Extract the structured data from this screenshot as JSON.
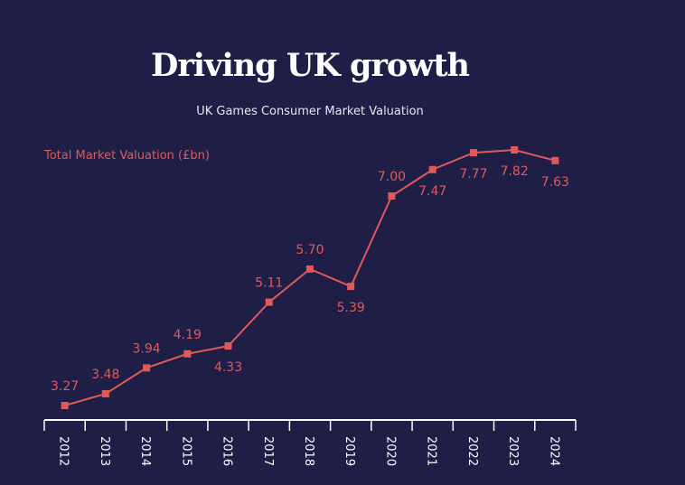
{
  "chart_data": {
    "type": "line",
    "title": "Driving UK growth",
    "subtitle": "UK Games Consumer Market Valuation",
    "ylabel": "Total Market Valuation (£bn)",
    "xlabel": "",
    "categories": [
      "2012",
      "2013",
      "2014",
      "2015",
      "2016",
      "2017",
      "2018",
      "2019",
      "2020",
      "2021",
      "2022",
      "2023",
      "2024"
    ],
    "values": [
      3.27,
      3.48,
      3.94,
      4.19,
      4.33,
      5.11,
      5.7,
      5.39,
      7.0,
      7.47,
      7.77,
      7.82,
      7.63
    ],
    "labels": [
      "3.27",
      "3.48",
      "3.94",
      "4.19",
      "4.33",
      "5.11",
      "5.70",
      "5.39",
      "7.00",
      "7.47",
      "7.77",
      "7.82",
      "7.63"
    ],
    "label_position": [
      "above",
      "above",
      "above",
      "above",
      "below",
      "above",
      "above",
      "below",
      "above",
      "below",
      "below",
      "below",
      "below"
    ],
    "grid": false,
    "colors": {
      "background": "#1f1e47",
      "line": "#e05a5a",
      "axis": "#ffffff",
      "text": "#ffffff"
    }
  }
}
